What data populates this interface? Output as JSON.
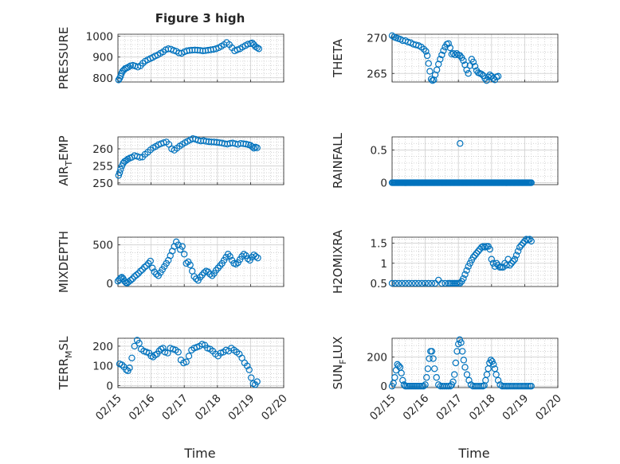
{
  "chart_data": {
    "type": "scatter",
    "title": "Figure 3 high",
    "xlabel": "Time",
    "xticks": [
      "02/15",
      "02/16",
      "02/17",
      "02/18",
      "02/19",
      "02/20"
    ],
    "xlim_days": [
      0,
      5
    ],
    "marker": {
      "shape": "circle",
      "filled": false,
      "color": "#0072BD"
    },
    "grid": "major and minor, dotted",
    "panels": [
      {
        "name": "PRESSURE",
        "ylabel": "PRESSURE",
        "ylabel_parts": null,
        "ylim": [
          780,
          1010
        ],
        "yticks": [
          800,
          900,
          1000
        ],
        "ytick_labels": [
          "800",
          "900",
          "1000"
        ],
        "x": [
          0.02,
          0.05,
          0.08,
          0.11,
          0.14,
          0.18,
          0.22,
          0.27,
          0.32,
          0.38,
          0.45,
          0.52,
          0.6,
          0.68,
          0.75,
          0.82,
          0.9,
          0.98,
          1.05,
          1.12,
          1.2,
          1.28,
          1.36,
          1.44,
          1.52,
          1.6,
          1.68,
          1.76,
          1.84,
          1.92,
          2.0,
          2.08,
          2.16,
          2.24,
          2.32,
          2.4,
          2.48,
          2.56,
          2.64,
          2.72,
          2.8,
          2.88,
          2.96,
          3.04,
          3.12,
          3.2,
          3.28,
          3.36,
          3.44,
          3.52,
          3.6,
          3.68,
          3.76,
          3.84,
          3.92,
          4.0,
          4.05,
          4.1,
          4.15,
          4.2,
          4.25
        ],
        "y": [
          790,
          798,
          808,
          822,
          832,
          838,
          845,
          848,
          852,
          858,
          860,
          857,
          852,
          858,
          870,
          880,
          887,
          893,
          898,
          905,
          910,
          918,
          925,
          935,
          940,
          938,
          932,
          928,
          920,
          918,
          925,
          930,
          932,
          933,
          934,
          933,
          932,
          930,
          931,
          933,
          935,
          937,
          940,
          945,
          952,
          960,
          970,
          960,
          945,
          930,
          935,
          940,
          948,
          955,
          962,
          965,
          968,
          960,
          950,
          945,
          940
        ]
      },
      {
        "name": "THETA",
        "ylabel": "THETA",
        "ylabel_parts": null,
        "ylim": [
          263.8,
          270.5
        ],
        "yticks": [
          265,
          270
        ],
        "ytick_labels": [
          "265",
          "270"
        ],
        "x": [
          0.0,
          0.06,
          0.12,
          0.18,
          0.25,
          0.32,
          0.4,
          0.48,
          0.56,
          0.64,
          0.72,
          0.8,
          0.88,
          0.96,
          1.02,
          1.06,
          1.1,
          1.14,
          1.18,
          1.22,
          1.26,
          1.3,
          1.35,
          1.4,
          1.45,
          1.5,
          1.55,
          1.6,
          1.65,
          1.7,
          1.75,
          1.8,
          1.85,
          1.9,
          1.95,
          2.0,
          2.05,
          2.1,
          2.15,
          2.2,
          2.25,
          2.3,
          2.35,
          2.4,
          2.45,
          2.5,
          2.55,
          2.6,
          2.65,
          2.7,
          2.75,
          2.8,
          2.85,
          2.9,
          2.95,
          3.0,
          3.05,
          3.1,
          3.15,
          3.2
        ],
        "y": [
          270.3,
          270.1,
          270.0,
          269.9,
          269.8,
          269.6,
          269.6,
          269.4,
          269.3,
          269.1,
          269.0,
          268.9,
          268.7,
          268.4,
          268.1,
          267.5,
          266.4,
          265.3,
          264.2,
          264.0,
          264.1,
          264.8,
          265.5,
          266.3,
          267.0,
          267.6,
          268.2,
          268.7,
          269.1,
          269.2,
          268.6,
          267.7,
          267.8,
          267.6,
          267.8,
          267.6,
          267.5,
          267.2,
          266.8,
          266.2,
          265.5,
          265.0,
          266.1,
          267.0,
          266.6,
          266.0,
          265.4,
          265.1,
          265.0,
          264.9,
          264.7,
          264.3,
          264.0,
          264.5,
          264.8,
          264.6,
          264.3,
          264.1,
          264.5,
          264.6
        ]
      },
      {
        "name": "AIR_TEMP",
        "ylabel": "AIR_TEMP",
        "ylabel_parts": [
          "AIR",
          "T",
          "EMP"
        ],
        "ylim": [
          249.5,
          263.5
        ],
        "yticks": [
          250,
          255,
          260
        ],
        "ytick_labels": [
          "250",
          "255",
          "260"
        ],
        "x": [
          0.02,
          0.05,
          0.08,
          0.12,
          0.16,
          0.2,
          0.25,
          0.3,
          0.36,
          0.42,
          0.5,
          0.58,
          0.66,
          0.74,
          0.82,
          0.9,
          0.98,
          1.06,
          1.14,
          1.22,
          1.3,
          1.38,
          1.46,
          1.54,
          1.62,
          1.7,
          1.78,
          1.86,
          1.94,
          2.02,
          2.1,
          2.18,
          2.26,
          2.34,
          2.42,
          2.5,
          2.58,
          2.66,
          2.74,
          2.82,
          2.9,
          2.98,
          3.06,
          3.14,
          3.22,
          3.3,
          3.38,
          3.46,
          3.54,
          3.62,
          3.7,
          3.78,
          3.86,
          3.94,
          4.0,
          4.05,
          4.1,
          4.15,
          4.2
        ],
        "y": [
          252.2,
          253.0,
          254.0,
          255.0,
          255.8,
          256.3,
          256.6,
          257.0,
          257.3,
          257.5,
          258.0,
          257.8,
          257.5,
          257.6,
          258.4,
          259.0,
          259.7,
          260.3,
          260.7,
          261.2,
          261.5,
          261.8,
          262.0,
          261.3,
          260.0,
          259.6,
          260.2,
          260.8,
          261.3,
          261.8,
          262.2,
          262.6,
          263.0,
          262.8,
          262.5,
          262.3,
          262.4,
          262.2,
          262.1,
          262.0,
          262.0,
          261.9,
          261.8,
          261.7,
          261.5,
          261.4,
          261.6,
          261.7,
          261.5,
          261.3,
          261.6,
          261.5,
          261.4,
          261.2,
          261.0,
          260.6,
          260.2,
          260.5,
          260.3
        ]
      },
      {
        "name": "RAINFALL",
        "ylabel": "RAINFALL",
        "ylabel_parts": null,
        "ylim": [
          -0.03,
          0.7
        ],
        "yticks": [
          0,
          0.5
        ],
        "ytick_labels": [
          "0",
          "0.5"
        ],
        "spike": {
          "x": 2.05,
          "y": 0.6
        },
        "x_range": [
          0.0,
          4.2
        ],
        "baseline": 0
      },
      {
        "name": "MIXDEPTH",
        "ylabel": "MIXDEPTH",
        "ylabel_parts": null,
        "ylim": [
          -40,
          600
        ],
        "yticks": [
          0,
          500
        ],
        "ytick_labels": [
          "0",
          "500"
        ],
        "x": [
          0.0,
          0.04,
          0.08,
          0.12,
          0.16,
          0.2,
          0.24,
          0.28,
          0.32,
          0.38,
          0.44,
          0.5,
          0.56,
          0.62,
          0.68,
          0.74,
          0.8,
          0.86,
          0.92,
          0.98,
          1.04,
          1.1,
          1.16,
          1.22,
          1.28,
          1.34,
          1.4,
          1.46,
          1.52,
          1.58,
          1.64,
          1.7,
          1.76,
          1.82,
          1.88,
          1.94,
          2.0,
          2.06,
          2.12,
          2.18,
          2.24,
          2.3,
          2.36,
          2.42,
          2.48,
          2.54,
          2.6,
          2.66,
          2.72,
          2.78,
          2.84,
          2.9,
          2.96,
          3.02,
          3.08,
          3.14,
          3.2,
          3.26,
          3.32,
          3.38,
          3.44,
          3.5,
          3.56,
          3.62,
          3.68,
          3.74,
          3.8,
          3.86,
          3.92,
          3.98,
          4.04,
          4.1,
          4.16,
          4.22
        ],
        "y": [
          30,
          50,
          70,
          80,
          60,
          30,
          10,
          5,
          20,
          40,
          60,
          90,
          110,
          130,
          160,
          180,
          210,
          230,
          260,
          290,
          200,
          150,
          120,
          100,
          140,
          180,
          220,
          260,
          300,
          360,
          420,
          480,
          540,
          500,
          440,
          480,
          380,
          260,
          280,
          240,
          160,
          90,
          60,
          40,
          80,
          110,
          140,
          160,
          150,
          120,
          100,
          130,
          170,
          200,
          230,
          260,
          300,
          340,
          380,
          350,
          300,
          260,
          250,
          270,
          310,
          350,
          380,
          360,
          320,
          300,
          340,
          370,
          350,
          330
        ]
      },
      {
        "name": "H2OMIXRA",
        "ylabel": "H2OMIXRA",
        "ylabel_parts": null,
        "ylim": [
          0.42,
          1.65
        ],
        "yticks": [
          0.5,
          1,
          1.5
        ],
        "ytick_labels": [
          "0.5",
          "1",
          "1.5"
        ],
        "x": [
          0.0,
          0.1,
          0.2,
          0.3,
          0.4,
          0.5,
          0.6,
          0.7,
          0.8,
          0.9,
          1.0,
          1.1,
          1.2,
          1.3,
          1.4,
          1.5,
          1.6,
          1.7,
          1.75,
          1.8,
          1.85,
          1.9,
          1.95,
          2.0,
          2.05,
          2.1,
          2.15,
          2.2,
          2.25,
          2.3,
          2.35,
          2.4,
          2.45,
          2.5,
          2.55,
          2.6,
          2.65,
          2.7,
          2.75,
          2.8,
          2.85,
          2.9,
          2.95,
          3.0,
          3.05,
          3.1,
          3.15,
          3.2,
          3.25,
          3.3,
          3.35,
          3.4,
          3.45,
          3.5,
          3.55,
          3.6,
          3.65,
          3.7,
          3.75,
          3.8,
          3.85,
          3.9,
          3.95,
          4.0,
          4.05,
          4.1,
          4.15,
          4.2
        ],
        "y": [
          0.5,
          0.5,
          0.5,
          0.5,
          0.5,
          0.5,
          0.5,
          0.5,
          0.5,
          0.5,
          0.5,
          0.5,
          0.5,
          0.5,
          0.58,
          0.5,
          0.5,
          0.5,
          0.5,
          0.5,
          0.5,
          0.5,
          0.5,
          0.5,
          0.5,
          0.55,
          0.62,
          0.72,
          0.82,
          0.92,
          1.0,
          1.08,
          1.15,
          1.2,
          1.25,
          1.3,
          1.35,
          1.4,
          1.42,
          1.4,
          1.42,
          1.42,
          1.35,
          1.1,
          1.0,
          0.92,
          1.0,
          0.95,
          0.9,
          0.9,
          0.9,
          1.0,
          0.95,
          1.1,
          0.95,
          1.0,
          1.05,
          1.1,
          1.2,
          1.3,
          1.4,
          1.45,
          1.5,
          1.55,
          1.6,
          1.58,
          1.6,
          1.55
        ]
      },
      {
        "name": "TERR_MSL",
        "ylabel": "TERR_MSL",
        "ylabel_parts": [
          "TERR",
          "M",
          "SL"
        ],
        "ylim": [
          -10,
          240
        ],
        "yticks": [
          0,
          100,
          200
        ],
        "ytick_labels": [
          "0",
          "100",
          "200"
        ],
        "x": [
          0.05,
          0.12,
          0.18,
          0.25,
          0.3,
          0.35,
          0.42,
          0.5,
          0.58,
          0.64,
          0.7,
          0.78,
          0.86,
          0.94,
          1.0,
          1.06,
          1.12,
          1.18,
          1.24,
          1.3,
          1.36,
          1.42,
          1.5,
          1.58,
          1.66,
          1.74,
          1.82,
          1.9,
          1.98,
          2.06,
          2.14,
          2.22,
          2.3,
          2.38,
          2.46,
          2.54,
          2.62,
          2.7,
          2.78,
          2.86,
          2.94,
          3.02,
          3.1,
          3.18,
          3.26,
          3.34,
          3.42,
          3.5,
          3.58,
          3.66,
          3.74,
          3.82,
          3.9,
          3.96,
          4.02,
          4.08,
          4.14,
          4.2
        ],
        "y": [
          110,
          105,
          95,
          80,
          75,
          90,
          140,
          200,
          230,
          215,
          185,
          175,
          170,
          165,
          150,
          145,
          155,
          160,
          175,
          185,
          190,
          170,
          165,
          190,
          185,
          180,
          170,
          130,
          115,
          120,
          150,
          180,
          190,
          195,
          200,
          210,
          205,
          190,
          185,
          175,
          160,
          150,
          165,
          170,
          180,
          175,
          190,
          180,
          170,
          160,
          140,
          115,
          100,
          80,
          40,
          10,
          5,
          20
        ]
      },
      {
        "name": "SUN_FLUX",
        "ylabel": "SUN_FLUX",
        "ylabel_parts": [
          "SUN",
          "F",
          "LUX"
        ],
        "ylim": [
          -10,
          330
        ],
        "yticks": [
          0,
          200
        ],
        "ytick_labels": [
          "0",
          "200"
        ],
        "x": [
          0.0,
          0.04,
          0.08,
          0.12,
          0.16,
          0.2,
          0.24,
          0.28,
          0.32,
          0.36,
          0.4,
          0.45,
          0.5,
          0.55,
          0.6,
          0.65,
          0.7,
          0.75,
          0.8,
          0.85,
          0.9,
          0.95,
          1.0,
          1.04,
          1.08,
          1.12,
          1.16,
          1.2,
          1.24,
          1.28,
          1.34,
          1.4,
          1.46,
          1.52,
          1.58,
          1.64,
          1.7,
          1.76,
          1.8,
          1.84,
          1.88,
          1.92,
          1.96,
          2.0,
          2.04,
          2.08,
          2.12,
          2.16,
          2.2,
          2.26,
          2.32,
          2.38,
          2.44,
          2.5,
          2.56,
          2.62,
          2.68,
          2.74,
          2.78,
          2.82,
          2.86,
          2.9,
          2.94,
          2.98,
          3.02,
          3.06,
          3.1,
          3.14,
          3.2,
          3.26,
          3.32,
          3.38,
          3.44,
          3.5,
          3.56,
          3.62,
          3.68,
          3.74,
          3.8,
          3.86,
          3.92,
          3.98,
          4.04,
          4.1,
          4.16,
          4.2
        ],
        "y": [
          0,
          20,
          60,
          110,
          150,
          140,
          130,
          90,
          40,
          10,
          0,
          0,
          0,
          0,
          0,
          0,
          0,
          0,
          0,
          0,
          0,
          0,
          10,
          60,
          120,
          190,
          240,
          240,
          190,
          120,
          60,
          10,
          0,
          0,
          0,
          0,
          0,
          0,
          10,
          30,
          80,
          160,
          240,
          290,
          320,
          300,
          240,
          180,
          130,
          80,
          40,
          10,
          0,
          0,
          0,
          0,
          0,
          0,
          5,
          40,
          80,
          120,
          160,
          180,
          170,
          150,
          120,
          80,
          40,
          10,
          0,
          0,
          0,
          0,
          0,
          0,
          0,
          0,
          0,
          0,
          0,
          0,
          0,
          0,
          0,
          0
        ]
      }
    ]
  }
}
